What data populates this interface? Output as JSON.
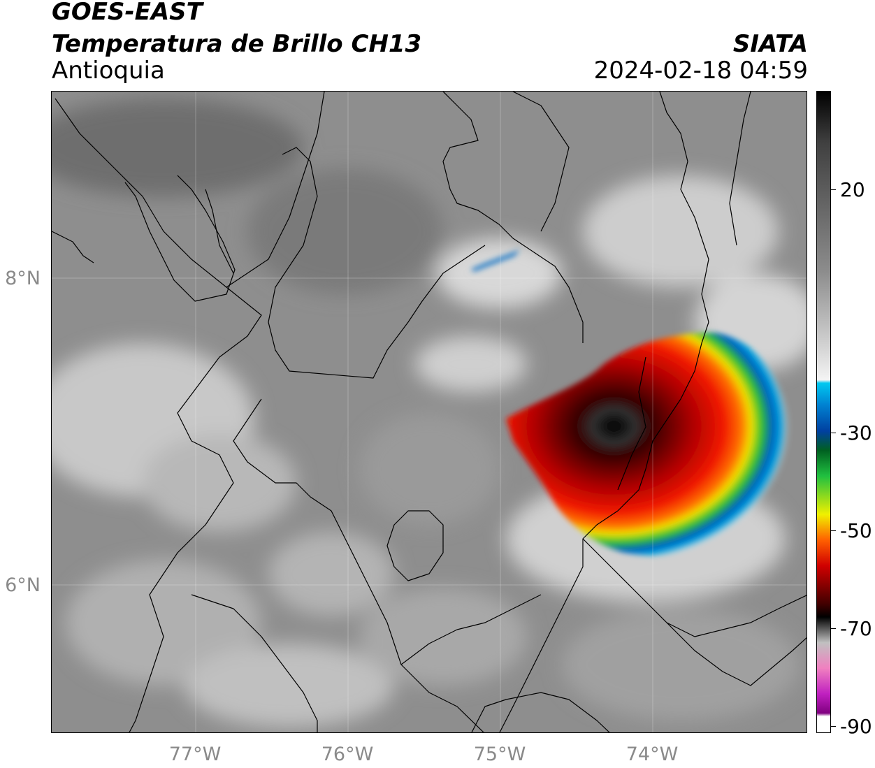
{
  "header": {
    "satellite": "GOES-EAST",
    "product": "Temperatura de Brillo CH13",
    "region": "Antioquia",
    "organization": "SIATA",
    "datetime": "2024-02-18 04:59"
  },
  "axes": {
    "lat_ticks": [
      "8°N",
      "6°N"
    ],
    "lon_ticks": [
      "77°W",
      "76°W",
      "75°W",
      "74°W"
    ]
  },
  "colorbar": {
    "ticks": [
      "20",
      "-30",
      "-50",
      "-70",
      "-90"
    ],
    "colors": {
      "warm_gray": "#8c8c8c",
      "cold_white": "#f4f4f4",
      "cyan": "#00c8f0",
      "blue": "#0040a0",
      "green": "#20c040",
      "yellow": "#f0f000",
      "orange": "#ff6000",
      "red": "#d00000",
      "dark_red": "#400000",
      "black": "#000000",
      "magenta": "#c020c0",
      "purple": "#800080"
    }
  },
  "map": {
    "storm": "convective cloud top",
    "grid": true
  }
}
